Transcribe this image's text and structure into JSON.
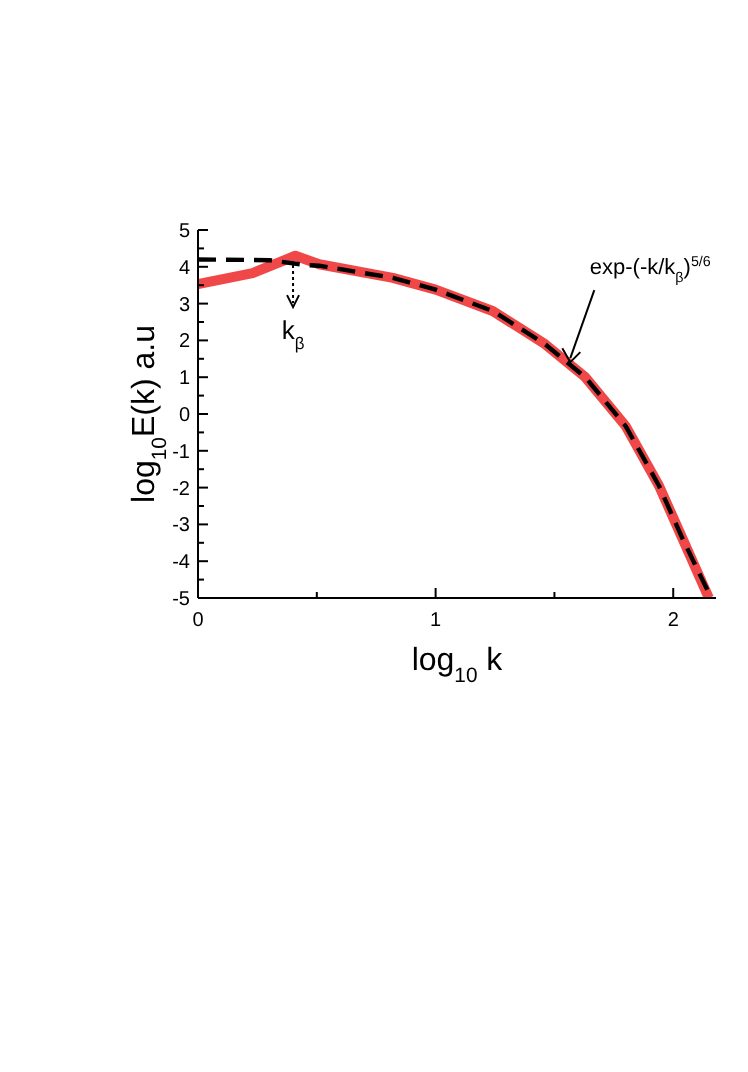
{
  "chart_data": {
    "type": "line",
    "xlabel": "log$_{10}$ k",
    "ylabel": "log$_{10}$E(k)  a.u",
    "xlim": [
      0,
      2.18
    ],
    "ylim": [
      -5,
      5
    ],
    "xticks": [
      0,
      {
        "value": 0.5,
        "label": null
      },
      1,
      {
        "value": 1.5,
        "label": null
      },
      2
    ],
    "yticks": [
      -5,
      {
        "value": -4.5,
        "label": null
      },
      -4,
      {
        "value": -3.5,
        "label": null
      },
      -3,
      {
        "value": -2.5,
        "label": null
      },
      -2,
      {
        "value": -1.5,
        "label": null
      },
      -1,
      {
        "value": -0.5,
        "label": null
      },
      0,
      {
        "value": 0.5,
        "label": null
      },
      1,
      {
        "value": 1.5,
        "label": null
      },
      2,
      {
        "value": 2.5,
        "label": null
      },
      3,
      {
        "value": 3.5,
        "label": null
      },
      4,
      {
        "value": 4.5,
        "label": null
      },
      5
    ],
    "grid": false,
    "series": [
      {
        "color": "#f04848",
        "line_style": "solid",
        "x": [
          0,
          0.23,
          0.41,
          0.51,
          0.82,
          1,
          1.24,
          1.46,
          1.63,
          1.8,
          1.94,
          2.04,
          2.15
        ],
        "values": [
          3.53,
          3.83,
          4.3,
          4.07,
          3.7,
          3.38,
          2.8,
          1.9,
          1.0,
          -0.33,
          -1.95,
          -3.4,
          -5
        ]
      },
      {
        "color": "#000000",
        "line_style": "dashed",
        "x": [
          0,
          0.3,
          0.45,
          0.51,
          0.82,
          1,
          1.24,
          1.46,
          1.63,
          1.8,
          1.94,
          2.04,
          2.16
        ],
        "values": [
          4.2,
          4.18,
          4.05,
          4.03,
          3.7,
          3.38,
          2.8,
          1.9,
          1.0,
          -0.33,
          -1.95,
          -3.4,
          -5
        ]
      }
    ],
    "annotations": [
      {
        "text": "k$_{β}$",
        "x": 0.4,
        "y": 4.1
      },
      {
        "text": "exp-(-k/k$_{β}$)$^{5/6}$",
        "x": 1.55,
        "y": 1.3
      }
    ]
  }
}
